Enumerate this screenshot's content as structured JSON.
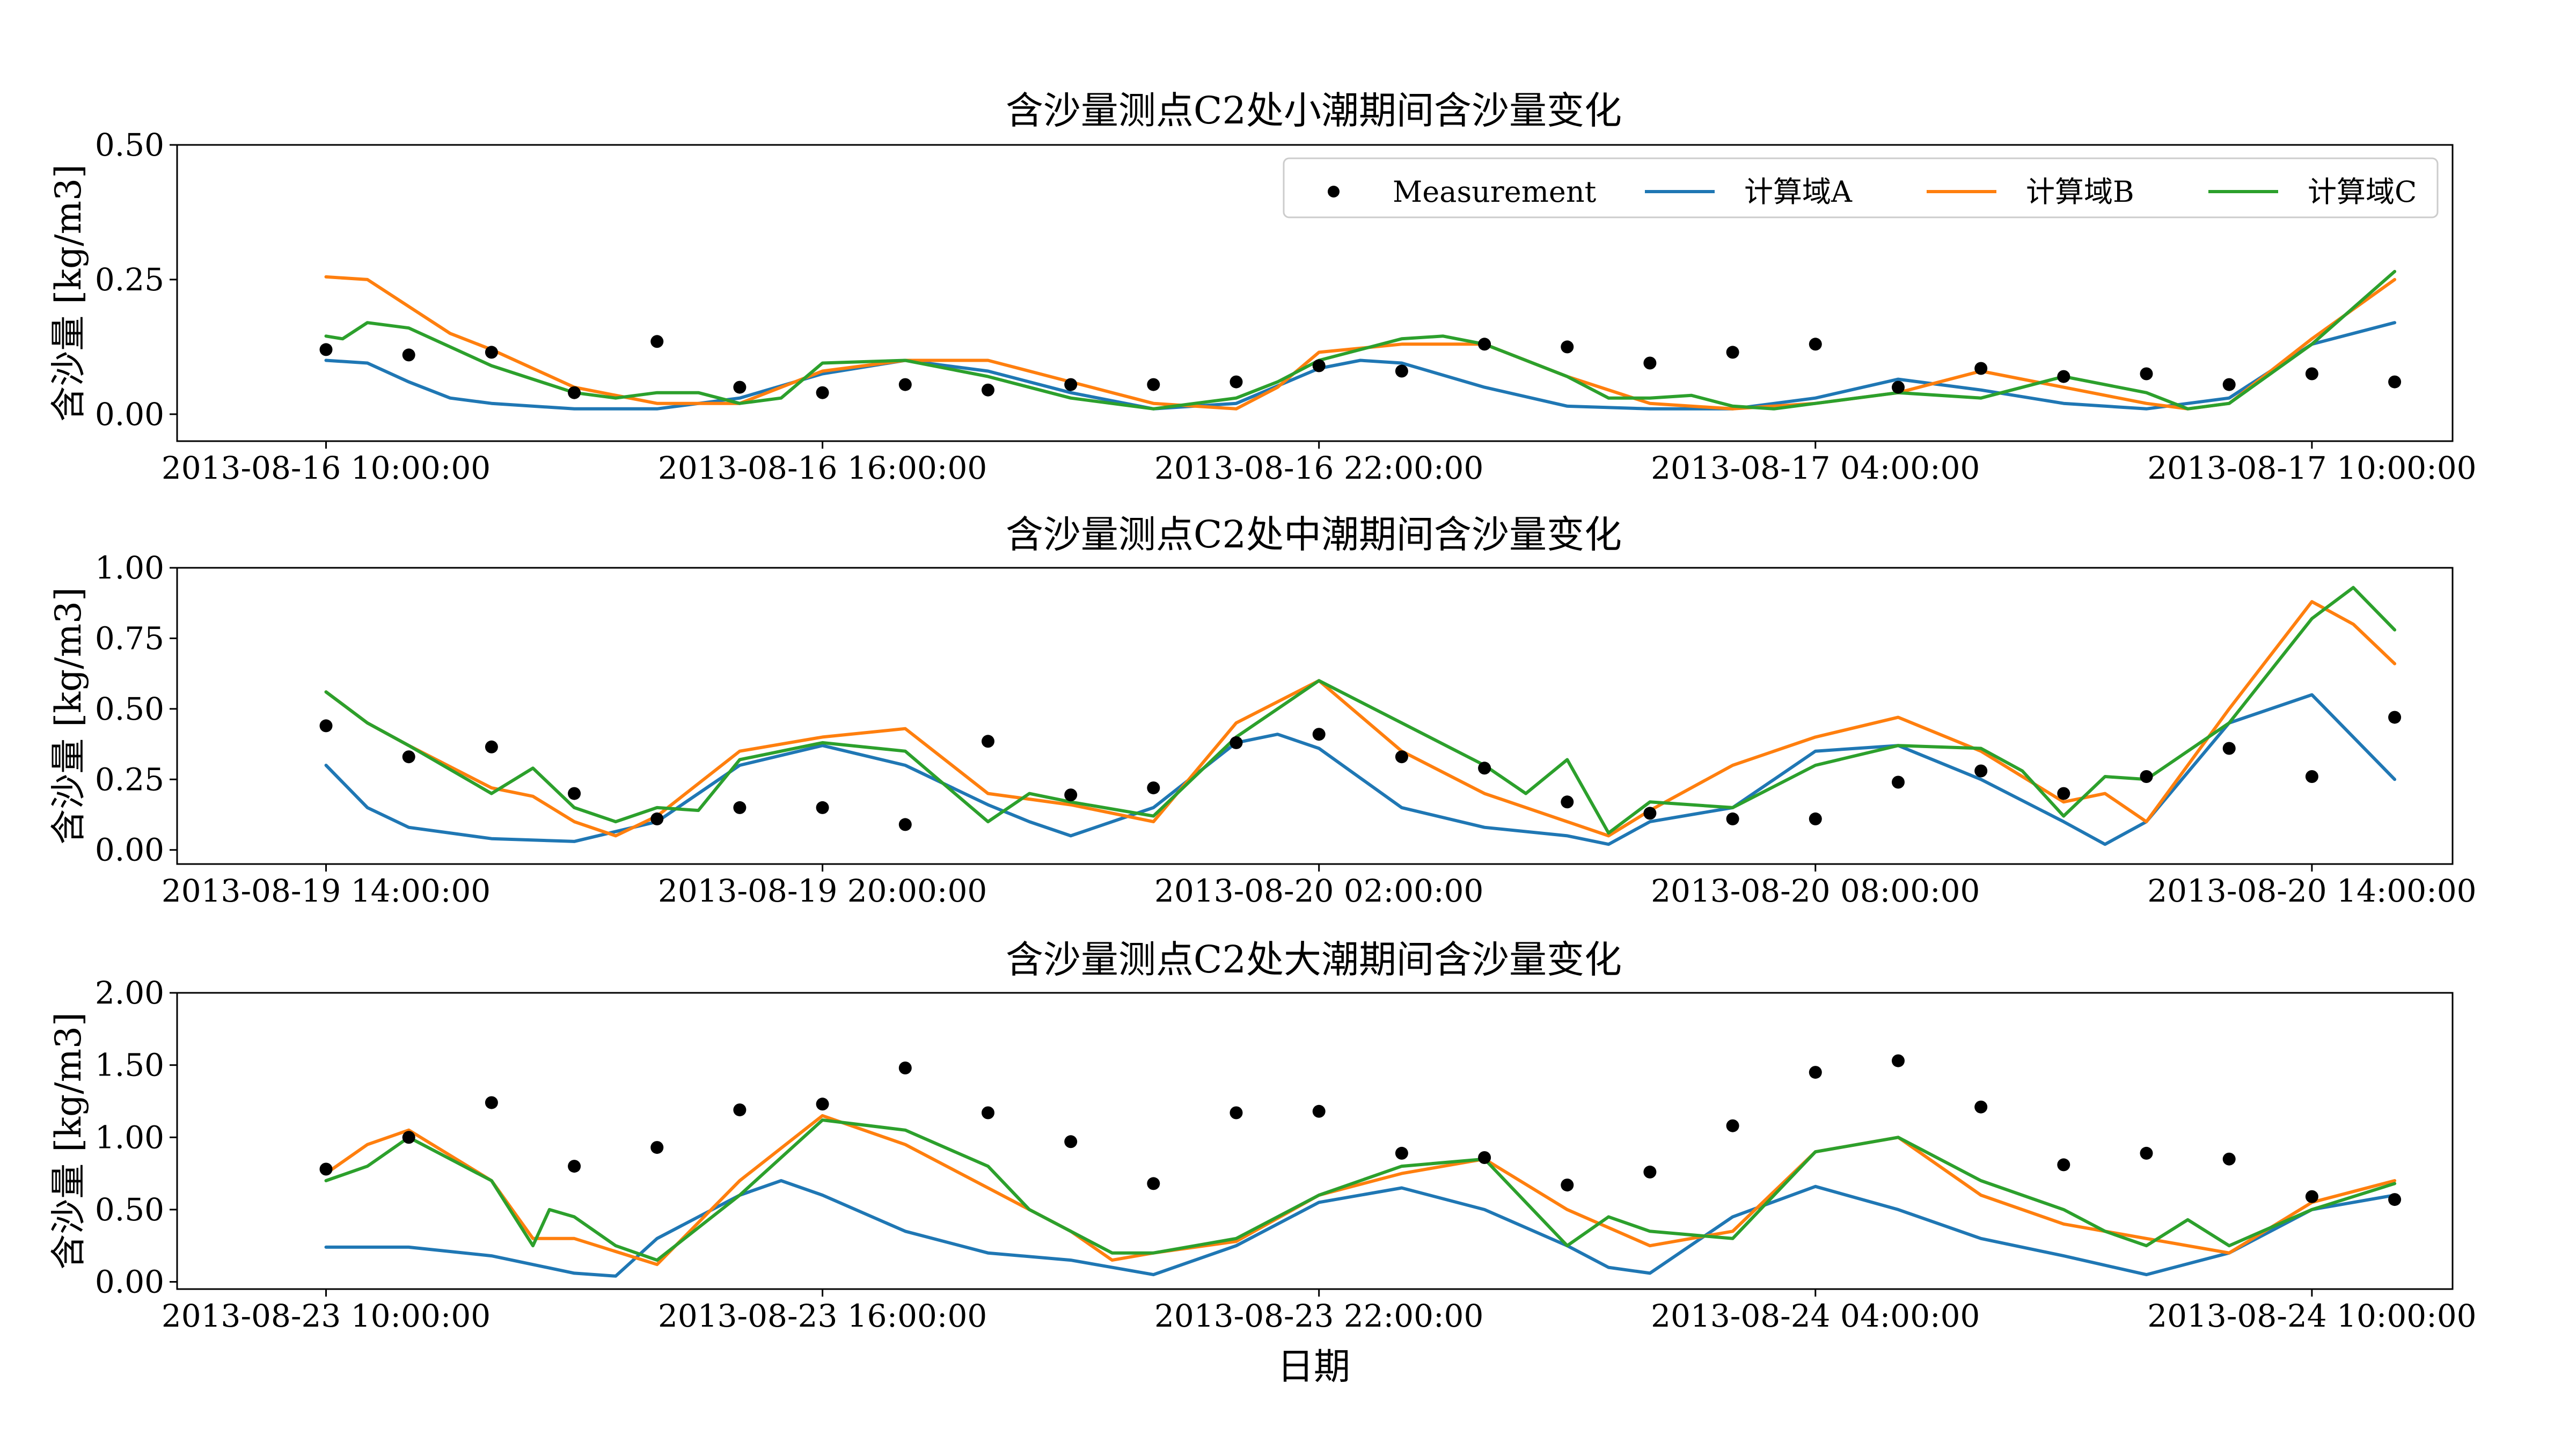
{
  "figure": {
    "xlabel": "日期",
    "colors": {
      "measurement": "#000000",
      "A": "#1f77b4",
      "B": "#ff7f0e",
      "C": "#2ca02c"
    }
  },
  "legend": {
    "placement": "upper-right of first panel",
    "entries": [
      "Measurement",
      "计算域A",
      "计算域B",
      "计算域C"
    ]
  },
  "chart_data": [
    {
      "type": "line",
      "title": "含沙量测点C2处小潮期间含沙量变化",
      "ylabel": "含沙量 [kg/m3]",
      "ylim": [
        -0.05,
        0.5
      ],
      "yticks": [
        "0.00",
        "0.25",
        "0.50"
      ],
      "xticks": [
        "2013-08-16 10:00:00",
        "2013-08-16 16:00:00",
        "2013-08-16 22:00:00",
        "2013-08-17 04:00:00",
        "2013-08-17 10:00:00"
      ],
      "x_unit": "hours after 2013-08-16 10:00:00",
      "xlim": [
        -1.8,
        25.7
      ],
      "measurement": {
        "x": [
          0,
          1,
          2,
          3,
          4,
          5,
          6,
          7,
          8,
          9,
          10,
          11,
          12,
          13,
          14,
          15,
          16,
          17,
          18,
          19,
          20,
          21,
          22,
          23,
          24,
          25
        ],
        "y": [
          0.12,
          0.11,
          0.115,
          0.04,
          0.135,
          0.05,
          0.04,
          0.055,
          0.045,
          0.055,
          0.055,
          0.06,
          0.09,
          0.08,
          0.13,
          0.125,
          0.095,
          0.115,
          0.13,
          0.05,
          0.085,
          0.07,
          0.075,
          0.055,
          0.075,
          0.06
        ]
      },
      "series": [
        {
          "name": "计算域A",
          "x": [
            0,
            0.5,
            1,
            1.5,
            2,
            3,
            4,
            5,
            6,
            7,
            8,
            9,
            10,
            11,
            12,
            12.5,
            13,
            14,
            15,
            16,
            17,
            18,
            19,
            20,
            21,
            22,
            23,
            24,
            25
          ],
          "y": [
            0.1,
            0.095,
            0.06,
            0.03,
            0.02,
            0.01,
            0.01,
            0.03,
            0.075,
            0.1,
            0.08,
            0.04,
            0.01,
            0.02,
            0.085,
            0.1,
            0.095,
            0.05,
            0.015,
            0.01,
            0.01,
            0.03,
            0.065,
            0.045,
            0.02,
            0.01,
            0.03,
            0.13,
            0.17
          ]
        },
        {
          "name": "计算域B",
          "x": [
            0,
            0.5,
            1,
            1.5,
            2,
            3,
            4,
            5,
            6,
            7,
            8,
            9,
            10,
            11,
            11.5,
            12,
            13,
            14,
            15,
            16,
            17,
            18,
            19,
            20,
            21,
            22,
            22.5,
            23,
            24,
            25
          ],
          "y": [
            0.255,
            0.25,
            0.2,
            0.15,
            0.12,
            0.05,
            0.02,
            0.02,
            0.08,
            0.1,
            0.1,
            0.06,
            0.02,
            0.01,
            0.05,
            0.115,
            0.13,
            0.13,
            0.07,
            0.02,
            0.01,
            0.02,
            0.04,
            0.08,
            0.05,
            0.02,
            0.01,
            0.02,
            0.14,
            0.25
          ]
        },
        {
          "name": "计算域C",
          "x": [
            0,
            0.2,
            0.5,
            1,
            2,
            3,
            3.5,
            4,
            4.5,
            5,
            5.5,
            6,
            7,
            8,
            9,
            10,
            10.5,
            11,
            11.5,
            12,
            12.5,
            13,
            13.5,
            14,
            15,
            15.5,
            16,
            16.5,
            17,
            17.5,
            18,
            19,
            20,
            21,
            22,
            22.5,
            23,
            24,
            25
          ],
          "y": [
            0.145,
            0.14,
            0.17,
            0.16,
            0.09,
            0.04,
            0.03,
            0.04,
            0.04,
            0.02,
            0.03,
            0.095,
            0.1,
            0.07,
            0.03,
            0.01,
            0.02,
            0.03,
            0.06,
            0.1,
            0.12,
            0.14,
            0.145,
            0.13,
            0.07,
            0.03,
            0.03,
            0.035,
            0.015,
            0.01,
            0.02,
            0.04,
            0.03,
            0.07,
            0.04,
            0.01,
            0.02,
            0.13,
            0.265
          ]
        }
      ]
    },
    {
      "type": "line",
      "title": "含沙量测点C2处中潮期间含沙量变化",
      "ylabel": "含沙量 [kg/m3]",
      "ylim": [
        -0.05,
        1.0
      ],
      "yticks": [
        "0.00",
        "0.25",
        "0.50",
        "0.75",
        "1.00"
      ],
      "xticks": [
        "2013-08-19 14:00:00",
        "2013-08-19 20:00:00",
        "2013-08-20 02:00:00",
        "2013-08-20 08:00:00",
        "2013-08-20 14:00:00"
      ],
      "x_unit": "hours after 2013-08-19 14:00:00",
      "xlim": [
        -1.8,
        25.7
      ],
      "measurement": {
        "x": [
          0,
          1,
          2,
          3,
          4,
          5,
          6,
          7,
          8,
          9,
          10,
          11,
          12,
          13,
          14,
          15,
          16,
          17,
          18,
          19,
          20,
          21,
          22,
          23,
          24,
          25
        ],
        "y": [
          0.44,
          0.33,
          0.365,
          0.2,
          0.11,
          0.15,
          0.15,
          0.09,
          0.385,
          0.195,
          0.22,
          0.38,
          0.41,
          0.33,
          0.29,
          0.17,
          0.13,
          0.11,
          0.11,
          0.24,
          0.28,
          0.2,
          0.26,
          0.36,
          0.26,
          0.47
        ]
      },
      "series": [
        {
          "name": "计算域A",
          "x": [
            0,
            0.5,
            1,
            2,
            3,
            4,
            5,
            6,
            7,
            8,
            8.5,
            9,
            10,
            11,
            11.5,
            12,
            13,
            14,
            15,
            15.5,
            16,
            17,
            18,
            19,
            20,
            21,
            21.5,
            22,
            23,
            24,
            25
          ],
          "y": [
            0.3,
            0.15,
            0.08,
            0.04,
            0.03,
            0.1,
            0.3,
            0.37,
            0.3,
            0.16,
            0.1,
            0.05,
            0.15,
            0.38,
            0.41,
            0.36,
            0.15,
            0.08,
            0.05,
            0.02,
            0.1,
            0.15,
            0.35,
            0.37,
            0.25,
            0.1,
            0.02,
            0.1,
            0.45,
            0.55,
            0.25
          ]
        },
        {
          "name": "计算域B",
          "x": [
            0,
            0.5,
            1,
            2,
            2.5,
            3,
            3.5,
            4,
            5,
            6,
            7,
            8,
            8.5,
            9,
            10,
            11,
            12,
            13,
            14,
            15,
            15.5,
            16,
            17,
            18,
            19,
            20,
            21,
            21.5,
            22,
            23,
            24,
            24.5,
            25
          ],
          "y": [
            0.56,
            0.45,
            0.37,
            0.22,
            0.19,
            0.1,
            0.05,
            0.12,
            0.35,
            0.4,
            0.43,
            0.2,
            0.18,
            0.16,
            0.1,
            0.45,
            0.6,
            0.35,
            0.2,
            0.1,
            0.05,
            0.14,
            0.3,
            0.4,
            0.47,
            0.35,
            0.17,
            0.2,
            0.1,
            0.5,
            0.88,
            0.8,
            0.66
          ]
        },
        {
          "name": "计算域C",
          "x": [
            0,
            0.5,
            1,
            2,
            2.5,
            3,
            3.5,
            4,
            4.5,
            5,
            6,
            7,
            8,
            8.5,
            9,
            10,
            11,
            12,
            13,
            14,
            14.5,
            15,
            15.5,
            16,
            17,
            18,
            19,
            20,
            20.5,
            21,
            21.5,
            22,
            23,
            24,
            24.5,
            25
          ],
          "y": [
            0.56,
            0.45,
            0.37,
            0.2,
            0.29,
            0.15,
            0.1,
            0.15,
            0.14,
            0.32,
            0.38,
            0.35,
            0.1,
            0.2,
            0.17,
            0.12,
            0.4,
            0.6,
            0.45,
            0.3,
            0.2,
            0.32,
            0.06,
            0.17,
            0.15,
            0.3,
            0.37,
            0.36,
            0.28,
            0.12,
            0.26,
            0.25,
            0.45,
            0.82,
            0.93,
            0.78
          ]
        }
      ]
    },
    {
      "type": "line",
      "title": "含沙量测点C2处大潮期间含沙量变化",
      "ylabel": "含沙量 [kg/m3]",
      "ylim": [
        -0.05,
        2.0
      ],
      "yticks": [
        "0.00",
        "0.50",
        "1.00",
        "1.50",
        "2.00"
      ],
      "xticks": [
        "2013-08-23 10:00:00",
        "2013-08-23 16:00:00",
        "2013-08-23 22:00:00",
        "2013-08-24 04:00:00",
        "2013-08-24 10:00:00"
      ],
      "x_unit": "hours after 2013-08-23 10:00:00",
      "xlim": [
        -1.8,
        25.7
      ],
      "measurement": {
        "x": [
          0,
          1,
          2,
          3,
          4,
          5,
          6,
          7,
          8,
          9,
          10,
          11,
          12,
          13,
          14,
          15,
          16,
          17,
          18,
          19,
          20,
          21,
          22,
          23,
          24,
          25
        ],
        "y": [
          0.78,
          1.0,
          1.24,
          0.8,
          0.93,
          1.19,
          1.23,
          1.48,
          1.17,
          0.97,
          0.68,
          1.17,
          1.18,
          0.89,
          0.86,
          0.67,
          0.76,
          1.08,
          1.45,
          1.53,
          1.21,
          0.81,
          0.89,
          0.85,
          0.59,
          0.57
        ]
      },
      "series": [
        {
          "name": "计算域A",
          "x": [
            0,
            1,
            2,
            3,
            3.5,
            4,
            5,
            5.5,
            6,
            7,
            8,
            9,
            9.5,
            10,
            11,
            12,
            13,
            14,
            15,
            15.5,
            16,
            17,
            18,
            19,
            20,
            21,
            22,
            23,
            24,
            25
          ],
          "y": [
            0.24,
            0.24,
            0.18,
            0.06,
            0.04,
            0.3,
            0.6,
            0.7,
            0.6,
            0.35,
            0.2,
            0.15,
            0.1,
            0.05,
            0.25,
            0.55,
            0.65,
            0.5,
            0.25,
            0.1,
            0.06,
            0.45,
            0.66,
            0.5,
            0.3,
            0.18,
            0.05,
            0.2,
            0.5,
            0.6
          ]
        },
        {
          "name": "计算域B",
          "x": [
            0,
            0.5,
            1,
            2,
            2.5,
            3,
            4,
            5,
            6,
            7,
            8,
            9,
            9.5,
            10,
            11,
            12,
            13,
            14,
            15,
            16,
            17,
            18,
            19,
            20,
            21,
            22,
            23,
            24,
            25
          ],
          "y": [
            0.75,
            0.95,
            1.05,
            0.7,
            0.3,
            0.3,
            0.12,
            0.7,
            1.15,
            0.95,
            0.65,
            0.35,
            0.15,
            0.2,
            0.28,
            0.6,
            0.75,
            0.85,
            0.5,
            0.25,
            0.35,
            0.9,
            1.0,
            0.6,
            0.4,
            0.3,
            0.2,
            0.55,
            0.7
          ]
        },
        {
          "name": "计算域C",
          "x": [
            0,
            0.5,
            1,
            2,
            2.5,
            2.7,
            3,
            3.5,
            4,
            5,
            6,
            7,
            8,
            8.5,
            9,
            9.5,
            10,
            11,
            12,
            13,
            14,
            14.5,
            15,
            15.5,
            16,
            17,
            18,
            19,
            20,
            21,
            21.5,
            22,
            22.5,
            23,
            24,
            25
          ],
          "y": [
            0.7,
            0.8,
            1.0,
            0.7,
            0.25,
            0.5,
            0.45,
            0.25,
            0.15,
            0.6,
            1.12,
            1.05,
            0.8,
            0.5,
            0.35,
            0.2,
            0.2,
            0.3,
            0.6,
            0.8,
            0.85,
            0.55,
            0.25,
            0.45,
            0.35,
            0.3,
            0.9,
            1.0,
            0.7,
            0.5,
            0.35,
            0.25,
            0.43,
            0.25,
            0.5,
            0.68
          ]
        }
      ]
    }
  ]
}
